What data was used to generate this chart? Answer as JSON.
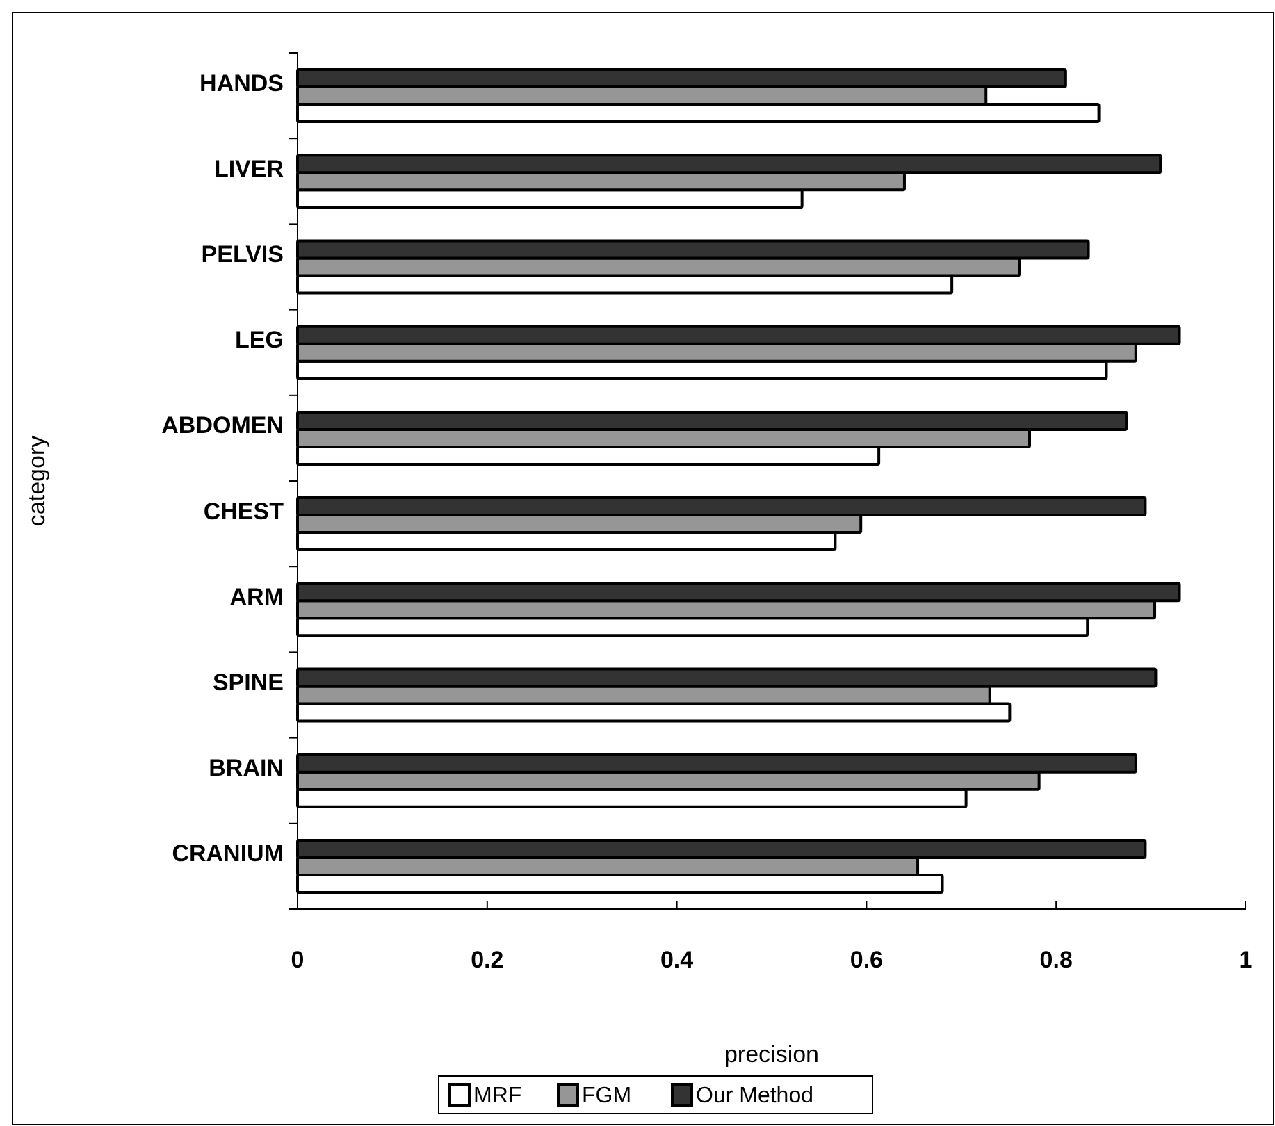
{
  "chart_data": {
    "type": "bar",
    "orientation": "horizontal",
    "xlabel": "precision",
    "ylabel": "category",
    "categories": [
      "HANDS",
      "LIVER",
      "PELVIS",
      "LEG",
      "ABDOMEN",
      "CHEST",
      "ARM",
      "SPINE",
      "BRAIN",
      "CRANIUM"
    ],
    "series": [
      {
        "name": "MRF",
        "color": "#ffffff",
        "values": [
          0.845,
          0.532,
          0.69,
          0.853,
          0.613,
          0.567,
          0.833,
          0.751,
          0.705,
          0.68
        ]
      },
      {
        "name": "FGM",
        "color": "#969696",
        "values": [
          0.726,
          0.64,
          0.761,
          0.884,
          0.772,
          0.594,
          0.904,
          0.73,
          0.782,
          0.654
        ]
      },
      {
        "name": "Our Method",
        "color": "#333333",
        "values": [
          0.81,
          0.91,
          0.834,
          0.93,
          0.874,
          0.894,
          0.93,
          0.905,
          0.884,
          0.894
        ]
      }
    ],
    "xlim": [
      0,
      1
    ],
    "xticks": [
      0,
      0.2,
      0.4,
      0.6,
      0.8,
      1
    ],
    "grid": false,
    "legend": "bottom"
  }
}
